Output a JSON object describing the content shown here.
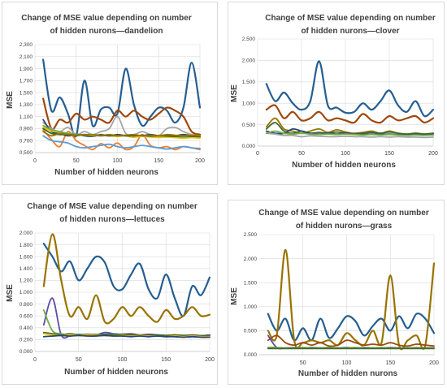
{
  "charts": [
    {
      "type": "line",
      "title": "Change of MSE value depending on number of hidden nurons—dandelion",
      "title_lines": [
        "Change of MSE value depending on number",
        "of hidden nurons—dandelion"
      ],
      "xlabel": "Number of hidden neurons",
      "ylabel": "MSE",
      "xlim": [
        0,
        200
      ],
      "ylim": [
        0.5,
        2.3
      ],
      "xticks": [
        "0",
        "50",
        "100",
        "150",
        "200"
      ],
      "yticks": [
        "0,500",
        "0,700",
        "0,900",
        "1,100",
        "1,300",
        "1,500",
        "1,700",
        "1,900",
        "2,100",
        "2,300"
      ],
      "grid": true,
      "x": [
        10,
        20,
        30,
        40,
        50,
        60,
        70,
        80,
        90,
        100,
        110,
        120,
        130,
        140,
        150,
        160,
        170,
        180,
        190,
        200
      ],
      "series": [
        {
          "color": "#255e91",
          "values": [
            2.05,
            1.2,
            1.42,
            1.15,
            0.78,
            1.7,
            0.95,
            1.22,
            1.25,
            1.15,
            1.9,
            1.3,
            0.95,
            1.1,
            1.25,
            1.2,
            1.0,
            1.25,
            2.0,
            1.25
          ]
        },
        {
          "color": "#9e480e",
          "values": [
            1.4,
            0.9,
            1.05,
            1.0,
            1.15,
            1.05,
            1.1,
            1.05,
            1.0,
            1.2,
            1.1,
            1.2,
            1.1,
            1.05,
            1.15,
            1.25,
            1.2,
            1.1,
            0.85,
            0.8
          ]
        },
        {
          "color": "#ed7d31",
          "values": [
            0.88,
            0.72,
            0.6,
            0.85,
            0.7,
            0.62,
            0.55,
            0.65,
            0.58,
            0.66,
            0.55,
            0.6,
            0.8,
            0.62,
            0.58,
            0.6,
            0.55,
            0.6,
            0.58,
            0.55
          ]
        },
        {
          "color": "#5b9bd5",
          "values": [
            0.78,
            0.7,
            0.68,
            0.66,
            0.6,
            0.58,
            0.6,
            0.62,
            0.64,
            0.6,
            0.58,
            0.6,
            0.62,
            0.6,
            0.58,
            0.56,
            0.58,
            0.6,
            0.58,
            0.57
          ]
        },
        {
          "color": "#a5a5a5",
          "values": [
            1.0,
            0.9,
            0.85,
            0.92,
            0.8,
            0.85,
            0.8,
            0.85,
            0.9,
            1.1,
            0.82,
            0.8,
            0.85,
            0.8,
            0.78,
            0.9,
            0.92,
            0.85,
            0.8,
            0.78
          ]
        },
        {
          "color": "#264478",
          "values": [
            1.05,
            0.85,
            0.82,
            0.78,
            0.8,
            0.78,
            0.77,
            0.8,
            0.78,
            0.8,
            0.78,
            0.76,
            0.78,
            0.8,
            0.78,
            0.77,
            0.78,
            0.8,
            0.78,
            0.76
          ]
        },
        {
          "color": "#ffc000",
          "values": [
            0.92,
            0.86,
            0.84,
            0.82,
            0.8,
            0.8,
            0.78,
            0.79,
            0.78,
            0.77,
            0.78,
            0.76,
            0.77,
            0.76,
            0.75,
            0.76,
            0.75,
            0.74,
            0.75,
            0.74
          ]
        },
        {
          "color": "#70ad47",
          "values": [
            0.95,
            0.88,
            0.85,
            0.82,
            0.8,
            0.79,
            0.8,
            0.78,
            0.79,
            0.78,
            0.79,
            0.78,
            0.78,
            0.77,
            0.78,
            0.77,
            0.77,
            0.76,
            0.77,
            0.76
          ]
        },
        {
          "color": "#43682b",
          "values": [
            0.9,
            0.82,
            0.8,
            0.8,
            0.79,
            0.8,
            0.79,
            0.79,
            0.78,
            0.79,
            0.78,
            0.78,
            0.79,
            0.78,
            0.78,
            0.78,
            0.77,
            0.78,
            0.77,
            0.77
          ]
        },
        {
          "color": "#997300",
          "values": [
            0.85,
            0.78,
            0.82,
            0.8,
            0.78,
            0.8,
            0.79,
            0.78,
            0.8,
            0.78,
            0.79,
            0.8,
            0.78,
            0.79,
            0.78,
            0.8,
            0.79,
            0.78,
            0.79,
            0.78
          ]
        }
      ]
    },
    {
      "type": "line",
      "title": "Change of MSE value depending on number of hidden nurons—clover",
      "title_lines": [
        "Change of MSE value depending on number",
        "of hidden nurons—clover"
      ],
      "xlabel": "Number of hidden neurons",
      "ylabel": "MSE",
      "xlim": [
        0,
        200
      ],
      "ylim": [
        0,
        2.5
      ],
      "xticks": [
        "0",
        "50",
        "100",
        "150",
        "200"
      ],
      "yticks": [
        "0.000",
        "0.500",
        "1.000",
        "1.500",
        "2.000",
        "2.500"
      ],
      "grid": true,
      "x": [
        10,
        20,
        30,
        40,
        50,
        60,
        70,
        80,
        90,
        100,
        110,
        120,
        130,
        140,
        150,
        160,
        170,
        180,
        190,
        200
      ],
      "series": [
        {
          "color": "#255e91",
          "values": [
            1.45,
            1.05,
            1.25,
            1.0,
            0.85,
            1.05,
            1.98,
            0.95,
            0.9,
            0.78,
            0.8,
            1.0,
            0.85,
            1.05,
            1.3,
            0.95,
            0.8,
            1.05,
            0.7,
            0.85
          ]
        },
        {
          "color": "#9e480e",
          "values": [
            0.85,
            0.95,
            0.65,
            0.8,
            0.6,
            0.65,
            0.8,
            0.6,
            0.65,
            0.6,
            0.55,
            0.75,
            0.6,
            0.55,
            0.7,
            0.6,
            0.65,
            0.7,
            0.55,
            0.65
          ]
        },
        {
          "color": "#997300",
          "values": [
            0.45,
            0.65,
            0.4,
            0.35,
            0.3,
            0.35,
            0.4,
            0.32,
            0.38,
            0.33,
            0.3,
            0.32,
            0.35,
            0.3,
            0.35,
            0.3,
            0.28,
            0.3,
            0.28,
            0.3
          ]
        },
        {
          "color": "#43682b",
          "values": [
            0.4,
            0.55,
            0.35,
            0.3,
            0.35,
            0.3,
            0.32,
            0.3,
            0.33,
            0.3,
            0.28,
            0.3,
            0.32,
            0.3,
            0.33,
            0.3,
            0.28,
            0.3,
            0.28,
            0.3
          ]
        },
        {
          "color": "#264478",
          "values": [
            0.35,
            0.3,
            0.3,
            0.4,
            0.35,
            0.3,
            0.28,
            0.3,
            0.28,
            0.3,
            0.28,
            0.27,
            0.28,
            0.27,
            0.28,
            0.27,
            0.26,
            0.27,
            0.26,
            0.27
          ]
        },
        {
          "color": "#a5a5a5",
          "values": [
            0.3,
            0.28,
            0.25,
            0.25,
            0.22,
            0.24,
            0.23,
            0.22,
            0.22,
            0.23,
            0.22,
            0.22,
            0.21,
            0.22,
            0.21,
            0.22,
            0.21,
            0.21,
            0.2,
            0.21
          ]
        },
        {
          "color": "#70ad47",
          "values": [
            0.3,
            0.35,
            0.3,
            0.28,
            0.3,
            0.28,
            0.27,
            0.28,
            0.27,
            0.28,
            0.27,
            0.26,
            0.27,
            0.26,
            0.27,
            0.26,
            0.25,
            0.26,
            0.25,
            0.26
          ]
        }
      ]
    },
    {
      "type": "line",
      "title": "Change of MSE value depending on number of hidden nurons—lettuces",
      "title_lines": [
        "Change of MSE value depending on number",
        "of hidden nurons—lettuces"
      ],
      "xlabel": "Number of hidden neurons",
      "ylabel": "MSE",
      "xlim": [
        0,
        200
      ],
      "ylim": [
        0,
        2.0
      ],
      "xticks": [
        "0",
        "50",
        "100",
        "150",
        "200"
      ],
      "yticks": [
        "0.000",
        "0.200",
        "0.400",
        "0.600",
        "0.800",
        "1.000",
        "1.200",
        "1.400",
        "1.600",
        "1.800",
        "2.000"
      ],
      "grid": true,
      "x": [
        10,
        20,
        30,
        40,
        50,
        60,
        70,
        80,
        90,
        100,
        110,
        120,
        130,
        140,
        150,
        160,
        170,
        180,
        190,
        200
      ],
      "series": [
        {
          "color": "#255e91",
          "values": [
            1.82,
            1.6,
            1.35,
            1.52,
            1.2,
            1.4,
            1.6,
            1.5,
            1.1,
            1.05,
            1.3,
            1.48,
            1.05,
            0.9,
            1.3,
            0.9,
            0.6,
            1.1,
            0.95,
            1.25
          ]
        },
        {
          "color": "#997300",
          "values": [
            1.1,
            1.98,
            1.2,
            0.6,
            0.75,
            0.55,
            0.95,
            0.5,
            0.55,
            0.75,
            0.6,
            0.75,
            0.6,
            0.5,
            0.7,
            0.55,
            0.6,
            0.75,
            0.6,
            0.62
          ]
        },
        {
          "color": "#5b4ea8",
          "values": [
            0.45,
            0.9,
            0.28,
            0.26,
            0.28,
            0.27,
            0.28,
            0.32,
            0.3,
            0.29,
            0.3,
            0.28,
            0.29,
            0.28,
            0.27,
            0.28,
            0.27,
            0.28,
            0.27,
            0.28
          ]
        },
        {
          "color": "#70ad47",
          "values": [
            0.7,
            0.35,
            0.3,
            0.28,
            0.29,
            0.28,
            0.29,
            0.28,
            0.29,
            0.28,
            0.27,
            0.28,
            0.27,
            0.28,
            0.27,
            0.26,
            0.27,
            0.26,
            0.27,
            0.26
          ]
        },
        {
          "color": "#43682b",
          "values": [
            0.32,
            0.3,
            0.28,
            0.3,
            0.28,
            0.29,
            0.28,
            0.29,
            0.28,
            0.29,
            0.28,
            0.28,
            0.27,
            0.28,
            0.27,
            0.28,
            0.27,
            0.27,
            0.26,
            0.27
          ]
        },
        {
          "color": "#ffc000",
          "values": [
            0.3,
            0.28,
            0.27,
            0.28,
            0.27,
            0.28,
            0.27,
            0.27,
            0.26,
            0.27,
            0.26,
            0.27,
            0.26,
            0.26,
            0.25,
            0.26,
            0.25,
            0.26,
            0.25,
            0.25
          ]
        },
        {
          "color": "#264478",
          "values": [
            0.25,
            0.26,
            0.27,
            0.26,
            0.27,
            0.26,
            0.26,
            0.27,
            0.26,
            0.26,
            0.25,
            0.26,
            0.25,
            0.26,
            0.25,
            0.25,
            0.24,
            0.25,
            0.24,
            0.24
          ]
        }
      ]
    },
    {
      "type": "line",
      "title": "Change of MSE value depending on number of hidden nurons—grass",
      "title_lines": [
        "Change of MSE value depending on number",
        "of hidden nurons—grass"
      ],
      "xlabel": "Number of hidden nurons",
      "ylabel": "MSE",
      "xlim": [
        0,
        200
      ],
      "ylim": [
        0,
        2.5
      ],
      "xticks": [
        "50",
        "100",
        "150",
        "200"
      ],
      "yticks": [
        "0.000",
        "0.500",
        "1.000",
        "1.500",
        "2.000",
        "2.500"
      ],
      "grid": true,
      "x": [
        10,
        20,
        30,
        40,
        50,
        60,
        70,
        80,
        90,
        100,
        110,
        120,
        130,
        140,
        150,
        160,
        170,
        180,
        190,
        200
      ],
      "series": [
        {
          "color": "#255e91",
          "values": [
            0.85,
            0.5,
            0.75,
            0.3,
            0.55,
            0.3,
            0.75,
            0.35,
            0.55,
            0.8,
            0.7,
            0.4,
            0.6,
            0.75,
            0.5,
            0.8,
            0.55,
            0.85,
            0.75,
            0.45
          ]
        },
        {
          "color": "#997300",
          "values": [
            0.5,
            0.4,
            2.18,
            0.3,
            0.25,
            0.3,
            0.25,
            0.3,
            0.2,
            0.45,
            0.3,
            0.2,
            0.5,
            0.25,
            1.65,
            0.2,
            0.3,
            0.4,
            0.2,
            1.9
          ]
        },
        {
          "color": "#9e480e",
          "values": [
            0.3,
            0.4,
            0.25,
            0.2,
            0.25,
            0.2,
            0.25,
            0.18,
            0.2,
            0.3,
            0.25,
            0.2,
            0.22,
            0.2,
            0.25,
            0.2,
            0.18,
            0.22,
            0.2,
            0.18
          ]
        },
        {
          "color": "#5b4ea8",
          "values": [
            0.4,
            0.15,
            0.14,
            0.15,
            0.14,
            0.15,
            0.14,
            0.15,
            0.14,
            0.15,
            0.14,
            0.15,
            0.14,
            0.14,
            0.15,
            0.14,
            0.14,
            0.14,
            0.14,
            0.14
          ]
        },
        {
          "color": "#70ad47",
          "values": [
            0.15,
            0.15,
            0.14,
            0.14,
            0.15,
            0.14,
            0.14,
            0.15,
            0.14,
            0.14,
            0.15,
            0.14,
            0.14,
            0.15,
            0.14,
            0.14,
            0.14,
            0.15,
            0.14,
            0.14
          ]
        },
        {
          "color": "#43682b",
          "values": [
            0.13,
            0.13,
            0.13,
            0.13,
            0.13,
            0.13,
            0.13,
            0.13,
            0.13,
            0.13,
            0.13,
            0.13,
            0.13,
            0.13,
            0.13,
            0.13,
            0.13,
            0.13,
            0.13,
            0.13
          ]
        }
      ]
    }
  ]
}
